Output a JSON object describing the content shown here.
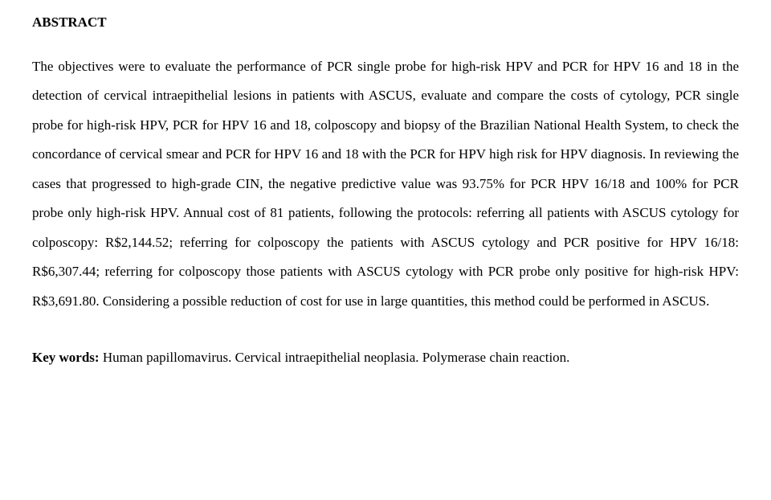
{
  "heading": "ABSTRACT",
  "body": "The objectives were to evaluate the performance of PCR single probe for high-risk HPV and PCR for HPV 16 and 18 in the detection of cervical intraepithelial lesions in patients with ASCUS, evaluate and compare the costs of cytology, PCR single probe for high-risk HPV, PCR for HPV 16 and 18, colposcopy and biopsy of the Brazilian National Health System, to check the concordance of cervical smear and PCR for HPV 16 and 18 with the PCR for HPV high risk for HPV diagnosis. In reviewing the cases that progressed to high-grade CIN, the negative predictive value was 93.75% for PCR HPV 16/18 and 100% for PCR probe only high-risk HPV. Annual cost of 81 patients, following the protocols: referring all patients with ASCUS cytology for colposcopy: R$2,144.52; referring for colposcopy the patients with ASCUS cytology and PCR positive for HPV 16/18: R$6,307.44; referring for colposcopy those patients with ASCUS cytology with PCR probe only positive for high-risk HPV: R$3,691.80. Considering a possible reduction of cost for use in large quantities, this method could be performed in ASCUS.",
  "keywords_label": "Key words: ",
  "keywords_text": "Human papillomavirus. Cervical intraepithelial neoplasia. Polymerase chain reaction."
}
